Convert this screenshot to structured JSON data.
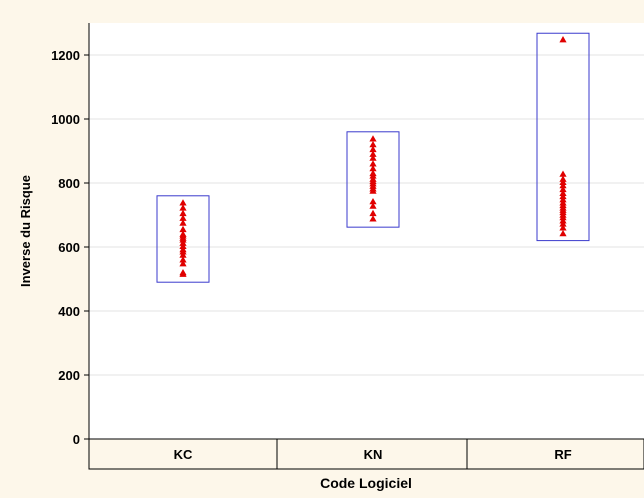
{
  "chart_data": {
    "type": "scatter",
    "title": "",
    "xlabel": "Code Logiciel",
    "ylabel": "Inverse du Risque",
    "categories": [
      "KC",
      "KN",
      "RF"
    ],
    "ylim": [
      0,
      1300
    ],
    "yticks": [
      0,
      200,
      400,
      600,
      800,
      1000,
      1200
    ],
    "grid": true,
    "point_marker": "triangle",
    "point_color": "#e00000",
    "box_color": "#3a3acc",
    "background_color": "#fdf7ea",
    "plot_background_color": "#ffffff",
    "groups": [
      {
        "category": "KC",
        "box": [
          490,
          760
        ],
        "values": [
          515,
          520,
          548,
          560,
          575,
          585,
          592,
          602,
          612,
          622,
          628,
          635,
          640,
          655,
          675,
          690,
          705,
          722,
          738
        ]
      },
      {
        "category": "KN",
        "box": [
          662,
          960
        ],
        "values": [
          688,
          705,
          728,
          742,
          775,
          782,
          790,
          798,
          805,
          812,
          822,
          830,
          845,
          860,
          878,
          890,
          905,
          920,
          938
        ]
      },
      {
        "category": "RF",
        "box": [
          620,
          1268
        ],
        "values": [
          642,
          660,
          672,
          682,
          692,
          700,
          708,
          715,
          722,
          730,
          738,
          748,
          758,
          768,
          780,
          792,
          802,
          812,
          828,
          1248
        ]
      }
    ]
  }
}
